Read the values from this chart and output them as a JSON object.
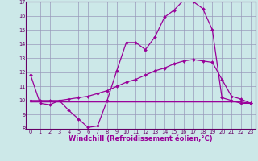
{
  "line1_x": [
    0,
    1,
    2,
    3,
    4,
    5,
    6,
    7,
    8,
    9,
    10,
    11,
    12,
    13,
    14,
    15,
    16,
    17,
    18,
    19,
    20,
    21,
    22,
    23
  ],
  "line1_y": [
    11.8,
    9.8,
    9.7,
    10.0,
    9.3,
    8.7,
    8.1,
    8.2,
    10.0,
    12.1,
    14.1,
    14.1,
    13.6,
    14.5,
    15.9,
    16.4,
    17.1,
    17.0,
    16.5,
    15.0,
    10.2,
    10.0,
    9.8,
    9.8
  ],
  "line2_x": [
    0,
    1,
    2,
    3,
    4,
    5,
    6,
    7,
    8,
    9,
    10,
    11,
    12,
    13,
    14,
    15,
    16,
    17,
    18,
    19,
    20,
    21,
    22,
    23
  ],
  "line2_y": [
    10.0,
    10.0,
    10.0,
    10.0,
    10.1,
    10.2,
    10.3,
    10.5,
    10.7,
    11.0,
    11.3,
    11.5,
    11.8,
    12.1,
    12.3,
    12.6,
    12.8,
    12.9,
    12.8,
    12.7,
    11.5,
    10.3,
    10.1,
    9.8
  ],
  "line3_x": [
    0,
    1,
    2,
    3,
    4,
    5,
    6,
    7,
    8,
    9,
    10,
    11,
    12,
    13,
    14,
    15,
    16,
    17,
    18,
    19,
    20,
    21,
    22,
    23
  ],
  "line3_y": [
    9.9,
    9.9,
    9.9,
    9.9,
    9.9,
    9.9,
    9.9,
    9.9,
    9.9,
    9.9,
    9.9,
    9.9,
    9.9,
    9.9,
    9.9,
    9.9,
    9.9,
    9.9,
    9.9,
    9.9,
    9.9,
    9.9,
    9.9,
    9.8
  ],
  "line1_markers_x": [
    0,
    1,
    2,
    3,
    4,
    5,
    6,
    7,
    8,
    9,
    10,
    11,
    12,
    13,
    14,
    15,
    16,
    17,
    18,
    19,
    20,
    22,
    23
  ],
  "line1_markers_y": [
    11.8,
    9.8,
    9.7,
    10.0,
    9.3,
    8.7,
    8.1,
    8.2,
    10.0,
    12.1,
    14.1,
    14.1,
    13.6,
    14.5,
    15.9,
    16.4,
    17.1,
    17.0,
    16.5,
    15.0,
    10.2,
    9.8,
    9.8
  ],
  "line_color": "#990099",
  "bg_color": "#cce8e8",
  "grid_color": "#9999bb",
  "xlabel": "Windchill (Refroidissement éolien,°C)",
  "xlim": [
    -0.5,
    23.5
  ],
  "ylim": [
    8,
    17
  ],
  "yticks": [
    8,
    9,
    10,
    11,
    12,
    13,
    14,
    15,
    16,
    17
  ],
  "xticks": [
    0,
    1,
    2,
    3,
    4,
    5,
    6,
    7,
    8,
    9,
    10,
    11,
    12,
    13,
    14,
    15,
    16,
    17,
    18,
    19,
    20,
    21,
    22,
    23
  ],
  "tick_fontsize": 4.8,
  "xlabel_fontsize": 6.0,
  "marker": "D",
  "markersize": 2.0,
  "linewidth": 0.9
}
